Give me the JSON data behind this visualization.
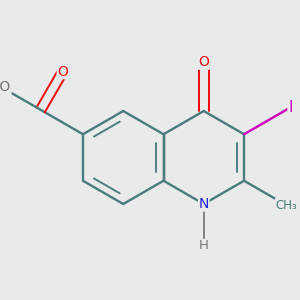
{
  "bg_color": "#e8eaeb",
  "bond_color": "#4a7c7c",
  "bond_width": 1.7,
  "atom_colors": {
    "O": "#ee1111",
    "N": "#2222dd",
    "I": "#cc00bb",
    "C": "#4a7c7c",
    "H": "#777777"
  },
  "font_size": 10.0,
  "fig_size": [
    3.0,
    3.0
  ],
  "dpi": 100
}
